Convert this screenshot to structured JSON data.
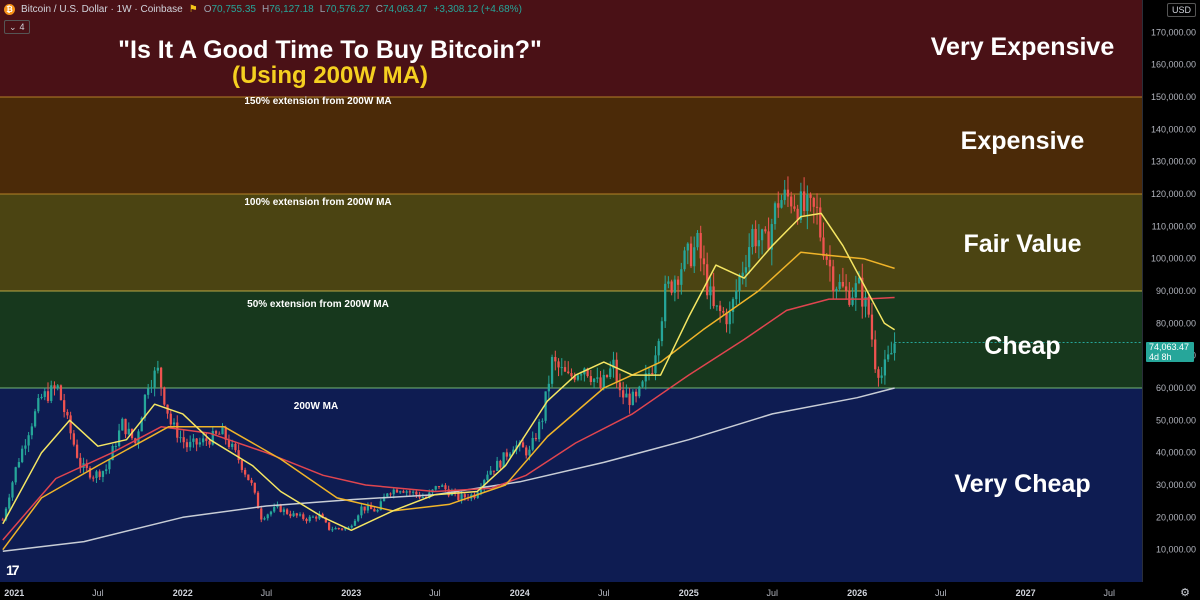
{
  "header": {
    "symbol_name": "Bitcoin / U.S. Dollar · 1W · Coinbase",
    "open_label": "O",
    "open_value": "70,755.35",
    "high_label": "H",
    "high_value": "76,127.18",
    "low_label": "L",
    "low_value": "70,576.27",
    "close_label": "C",
    "close_value": "74,063.47",
    "change": "+3,308.12 (+4.68%)",
    "indicator_count": "4",
    "currency": "USD"
  },
  "price_badge": {
    "price": "74,063.47",
    "countdown": "4d 8h"
  },
  "title_line1": "\"Is It A Good Time To Buy Bitcoin?\"",
  "title_line2": "(Using 200W MA)",
  "zones": {
    "very_expensive": "Very Expensive",
    "expensive": "Expensive",
    "fair_value": "Fair Value",
    "cheap": "Cheap",
    "very_cheap": "Very Cheap"
  },
  "ext_labels": {
    "ext150": "150% extension from 200W MA",
    "ext100": "100% extension from 200W MA",
    "ext50": "50% extension from 200W MA",
    "ma200": "200W MA"
  },
  "colors": {
    "very_expensive": "#4a1116",
    "expensive": "#4b2a08",
    "fair_value": "#4b4412",
    "cheap": "#17381d",
    "very_cheap": "#0e1c52",
    "candle_up": "#26a69a",
    "candle_down": "#ef5350",
    "ma_yellow": "#f5e663",
    "ma_orange": "#f0b429",
    "ma_red": "#e0454f",
    "ma_200w": "#c8cdd6"
  },
  "chart_data": {
    "type": "candlestick",
    "symbol": "Bitcoin / U.S. Dollar",
    "interval": "1W",
    "ylim": [
      0,
      180000
    ],
    "y_ticks": [
      "10,000.00",
      "20,000.00",
      "30,000.00",
      "40,000.00",
      "50,000.00",
      "60,000.00",
      "70,000.00",
      "80,000.00",
      "90,000.00",
      "100,000.00",
      "110,000.00",
      "120,000.00",
      "130,000.00",
      "140,000.00",
      "150,000.00",
      "160,000.00",
      "170,000.00"
    ],
    "x_ticks": [
      "2021",
      "Jul",
      "2022",
      "Jul",
      "2023",
      "Jul",
      "2024",
      "Jul",
      "2025",
      "Jul",
      "2026",
      "Jul",
      "2027",
      "Jul"
    ],
    "x_tick_dates": [
      "2021-01-01",
      "2021-07-01",
      "2022-01-01",
      "2022-07-01",
      "2023-01-01",
      "2023-07-01",
      "2024-01-01",
      "2024-07-01",
      "2025-01-01",
      "2025-07-01",
      "2026-01-01",
      "2026-07-01",
      "2027-01-01",
      "2027-07-01"
    ],
    "x_start": "2020-12-01",
    "x_end": "2027-09-10",
    "bands": [
      {
        "name": "Very Expensive",
        "from": 150000,
        "to": 180000
      },
      {
        "name": "Expensive",
        "from": 120000,
        "to": 150000
      },
      {
        "name": "Fair Value",
        "from": 90000,
        "to": 120000
      },
      {
        "name": "Cheap",
        "from": 60000,
        "to": 90000
      },
      {
        "name": "Very Cheap",
        "from": 0,
        "to": 60000
      }
    ],
    "closes": [
      [
        "2020-12-07",
        19300
      ],
      [
        "2021-01-04",
        35000
      ],
      [
        "2021-02-01",
        47000
      ],
      [
        "2021-03-01",
        57000
      ],
      [
        "2021-04-05",
        60000
      ],
      [
        "2021-05-03",
        46000
      ],
      [
        "2021-05-24",
        36000
      ],
      [
        "2021-06-21",
        33000
      ],
      [
        "2021-07-19",
        35000
      ],
      [
        "2021-08-23",
        49000
      ],
      [
        "2021-09-20",
        43000
      ],
      [
        "2021-10-18",
        62000
      ],
      [
        "2021-11-08",
        65000
      ],
      [
        "2021-12-06",
        49000
      ],
      [
        "2022-01-10",
        42000
      ],
      [
        "2022-02-07",
        43000
      ],
      [
        "2022-03-28",
        46000
      ],
      [
        "2022-05-02",
        38000
      ],
      [
        "2022-05-30",
        30000
      ],
      [
        "2022-06-20",
        20000
      ],
      [
        "2022-07-25",
        23000
      ],
      [
        "2022-08-22",
        21000
      ],
      [
        "2022-09-26",
        19500
      ],
      [
        "2022-10-24",
        20500
      ],
      [
        "2022-11-14",
        16500
      ],
      [
        "2022-12-26",
        16600
      ],
      [
        "2023-01-23",
        23000
      ],
      [
        "2023-02-27",
        22000
      ],
      [
        "2023-03-20",
        28000
      ],
      [
        "2023-04-17",
        29000
      ],
      [
        "2023-06-12",
        26000
      ],
      [
        "2023-07-10",
        30000
      ],
      [
        "2023-08-21",
        26000
      ],
      [
        "2023-09-25",
        27000
      ],
      [
        "2023-10-23",
        34000
      ],
      [
        "2023-11-20",
        37000
      ],
      [
        "2023-12-18",
        42500
      ],
      [
        "2024-01-22",
        40000
      ],
      [
        "2024-02-19",
        51000
      ],
      [
        "2024-03-11",
        68000
      ],
      [
        "2024-04-15",
        63000
      ],
      [
        "2024-05-20",
        67000
      ],
      [
        "2024-06-24",
        60000
      ],
      [
        "2024-07-22",
        67000
      ],
      [
        "2024-08-05",
        58000
      ],
      [
        "2024-09-09",
        56000
      ],
      [
        "2024-10-14",
        67000
      ],
      [
        "2024-11-11",
        89000
      ],
      [
        "2024-12-16",
        98000
      ],
      [
        "2025-01-20",
        104000
      ],
      [
        "2025-02-24",
        84000
      ],
      [
        "2025-03-31",
        82000
      ],
      [
        "2025-04-21",
        94000
      ],
      [
        "2025-05-19",
        108000
      ],
      [
        "2025-06-16",
        104000
      ],
      [
        "2025-07-14",
        118000
      ],
      [
        "2025-08-11",
        119000
      ],
      [
        "2025-09-08",
        115000
      ],
      [
        "2025-10-06",
        114000
      ],
      [
        "2025-10-13",
        108000
      ],
      [
        "2025-11-10",
        94000
      ],
      [
        "2025-12-08",
        89000
      ],
      [
        "2026-01-05",
        91000
      ],
      [
        "2026-01-26",
        83000
      ],
      [
        "2026-02-09",
        68000
      ],
      [
        "2026-02-23",
        64000
      ],
      [
        "2026-03-16",
        70755
      ],
      [
        "2026-03-23",
        74063
      ]
    ],
    "series": [
      {
        "name": "200W MA",
        "color": "#c8cdd6",
        "values": [
          [
            "2020-12-07",
            9500
          ],
          [
            "2021-06-01",
            12500
          ],
          [
            "2022-01-01",
            20000
          ],
          [
            "2022-07-01",
            23500
          ],
          [
            "2023-01-01",
            25500
          ],
          [
            "2023-07-01",
            27000
          ],
          [
            "2024-01-01",
            31000
          ],
          [
            "2024-07-01",
            37000
          ],
          [
            "2025-01-01",
            44000
          ],
          [
            "2025-07-01",
            52000
          ],
          [
            "2026-01-01",
            57000
          ],
          [
            "2026-03-23",
            60000
          ]
        ]
      },
      {
        "values": [
          [
            "2020-12-07",
            13000
          ],
          [
            "2021-04-01",
            32000
          ],
          [
            "2021-08-01",
            40000
          ],
          [
            "2021-11-15",
            48000
          ],
          [
            "2022-03-01",
            46000
          ],
          [
            "2022-07-01",
            40000
          ],
          [
            "2022-11-01",
            33000
          ],
          [
            "2023-02-01",
            30000
          ],
          [
            "2023-07-01",
            28000
          ],
          [
            "2023-11-01",
            29000
          ],
          [
            "2024-01-15",
            33000
          ],
          [
            "2024-05-01",
            43000
          ],
          [
            "2024-09-01",
            52000
          ],
          [
            "2025-01-01",
            64000
          ],
          [
            "2025-05-01",
            75000
          ],
          [
            "2025-08-01",
            84000
          ],
          [
            "2025-11-01",
            87500
          ],
          [
            "2026-01-15",
            87500
          ],
          [
            "2026-03-23",
            88000
          ]
        ]
      },
      {
        "values": [
          [
            "2020-12-07",
            10000
          ],
          [
            "2021-03-01",
            26000
          ],
          [
            "2021-07-01",
            36000
          ],
          [
            "2021-12-01",
            48000
          ],
          [
            "2022-04-01",
            48000
          ],
          [
            "2022-08-01",
            38000
          ],
          [
            "2022-12-01",
            26000
          ],
          [
            "2023-04-01",
            22000
          ],
          [
            "2023-08-01",
            24000
          ],
          [
            "2023-12-01",
            30000
          ],
          [
            "2024-03-01",
            45000
          ],
          [
            "2024-07-01",
            60000
          ],
          [
            "2024-11-01",
            68000
          ],
          [
            "2025-02-01",
            78000
          ],
          [
            "2025-06-01",
            90000
          ],
          [
            "2025-09-01",
            102000
          ],
          [
            "2025-11-01",
            101000
          ],
          [
            "2026-01-15",
            100000
          ],
          [
            "2026-03-23",
            97000
          ]
        ]
      },
      {
        "values": [
          [
            "2020-12-07",
            18000
          ],
          [
            "2021-03-01",
            40000
          ],
          [
            "2021-05-01",
            50000
          ],
          [
            "2021-07-01",
            42000
          ],
          [
            "2021-09-01",
            44000
          ],
          [
            "2021-11-01",
            55000
          ],
          [
            "2022-01-01",
            52000
          ],
          [
            "2022-03-01",
            44000
          ],
          [
            "2022-06-01",
            36000
          ],
          [
            "2022-08-01",
            28000
          ],
          [
            "2022-11-01",
            20000
          ],
          [
            "2023-01-01",
            16000
          ],
          [
            "2023-04-01",
            22000
          ],
          [
            "2023-07-01",
            27000
          ],
          [
            "2023-10-01",
            28000
          ],
          [
            "2023-12-01",
            36000
          ],
          [
            "2024-03-01",
            56000
          ],
          [
            "2024-05-01",
            64000
          ],
          [
            "2024-07-01",
            68000
          ],
          [
            "2024-09-01",
            64000
          ],
          [
            "2024-11-01",
            64000
          ],
          [
            "2025-01-01",
            82000
          ],
          [
            "2025-03-01",
            98000
          ],
          [
            "2025-05-01",
            94000
          ],
          [
            "2025-07-01",
            104000
          ],
          [
            "2025-09-01",
            113000
          ],
          [
            "2025-10-15",
            114000
          ],
          [
            "2025-12-01",
            104000
          ],
          [
            "2026-01-15",
            92000
          ],
          [
            "2026-03-01",
            80000
          ],
          [
            "2026-03-23",
            78000
          ]
        ]
      }
    ]
  }
}
